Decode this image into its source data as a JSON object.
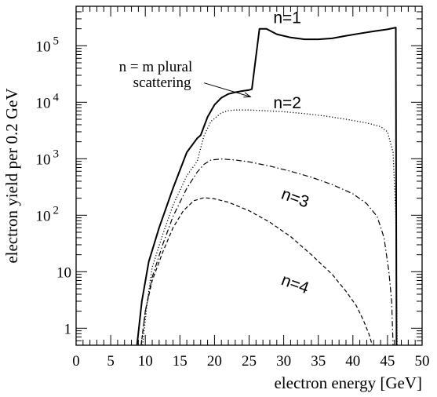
{
  "chart_data": {
    "type": "line",
    "title": "",
    "xlabel": "electron energy [GeV]",
    "ylabel": "electron yield per 0.2 GeV",
    "xlim": [
      0,
      50
    ],
    "ylim": [
      0.5,
      500000
    ],
    "yscale": "log",
    "grid": false,
    "x_ticks": [
      "0",
      "5",
      "10",
      "15",
      "20",
      "25",
      "30",
      "35",
      "40",
      "45",
      "50"
    ],
    "y_ticks": [
      {
        "value": 1,
        "label": "1"
      },
      {
        "value": 10,
        "label": "10"
      },
      {
        "value": 100,
        "label": "10",
        "sup": "2"
      },
      {
        "value": 1000,
        "label": "10",
        "sup": "3"
      },
      {
        "value": 10000,
        "label": "10",
        "sup": "4"
      },
      {
        "value": 100000,
        "label": "10",
        "sup": "5"
      }
    ],
    "series": [
      {
        "name": "n=1",
        "style": "solid",
        "label_x": 28.5,
        "label_y": 250000,
        "rotate": 0,
        "points": [
          [
            8.8,
            0.5
          ],
          [
            9.5,
            3
          ],
          [
            10.5,
            15
          ],
          [
            12,
            60
          ],
          [
            14,
            300
          ],
          [
            16,
            1300
          ],
          [
            17.5,
            2300
          ],
          [
            18,
            2600
          ],
          [
            19,
            5500
          ],
          [
            20,
            9000
          ],
          [
            21,
            12000
          ],
          [
            22,
            14000
          ],
          [
            23,
            15000
          ],
          [
            24,
            15800
          ],
          [
            25,
            16500
          ],
          [
            25.4,
            17000
          ],
          [
            26.5,
            200000
          ],
          [
            27.5,
            200000
          ],
          [
            29,
            160000
          ],
          [
            31,
            140000
          ],
          [
            33,
            130000
          ],
          [
            35,
            130000
          ],
          [
            37,
            135000
          ],
          [
            39,
            150000
          ],
          [
            41,
            165000
          ],
          [
            43,
            180000
          ],
          [
            45,
            195000
          ],
          [
            46.2,
            210000
          ],
          [
            46.3,
            0.5
          ]
        ]
      },
      {
        "name": "n=2",
        "style": "dotted",
        "label_x": 28.5,
        "label_y": 7800,
        "rotate": 0,
        "points": [
          [
            9.6,
            0.5
          ],
          [
            10.3,
            3
          ],
          [
            11,
            12
          ],
          [
            12.5,
            45
          ],
          [
            14,
            150
          ],
          [
            16,
            500
          ],
          [
            17.5,
            900
          ],
          [
            18.5,
            2600
          ],
          [
            19.5,
            4600
          ],
          [
            21,
            6500
          ],
          [
            22,
            7100
          ],
          [
            23,
            7300
          ],
          [
            25,
            7300
          ],
          [
            27,
            7100
          ],
          [
            30,
            6800
          ],
          [
            33,
            6300
          ],
          [
            36,
            5700
          ],
          [
            39,
            5000
          ],
          [
            42,
            4300
          ],
          [
            44,
            3700
          ],
          [
            45,
            3000
          ],
          [
            45.8,
            1300
          ],
          [
            46.2,
            100
          ],
          [
            46.4,
            0.5
          ]
        ]
      },
      {
        "name": "n=3",
        "style": "dashdot",
        "label_x": 29.5,
        "label_y": 200,
        "rotate": 20,
        "points": [
          [
            9.4,
            0.5
          ],
          [
            10,
            2
          ],
          [
            11,
            8
          ],
          [
            12.5,
            30
          ],
          [
            14,
            95
          ],
          [
            16,
            300
          ],
          [
            17.5,
            580
          ],
          [
            18.5,
            800
          ],
          [
            19.5,
            950
          ],
          [
            21,
            990
          ],
          [
            23,
            950
          ],
          [
            25,
            880
          ],
          [
            28,
            740
          ],
          [
            31,
            600
          ],
          [
            34,
            470
          ],
          [
            37,
            350
          ],
          [
            40,
            240
          ],
          [
            42,
            160
          ],
          [
            43.5,
            95
          ],
          [
            44.5,
            40
          ],
          [
            45.2,
            10
          ],
          [
            45.6,
            3
          ],
          [
            45.8,
            0.5
          ]
        ]
      },
      {
        "name": "n=4",
        "style": "dashed",
        "label_x": 29.5,
        "label_y": 6,
        "rotate": 20,
        "points": [
          [
            9.4,
            0.5
          ],
          [
            10,
            2
          ],
          [
            11,
            7
          ],
          [
            12.5,
            22
          ],
          [
            14,
            60
          ],
          [
            15.5,
            120
          ],
          [
            17,
            180
          ],
          [
            18.5,
            205
          ],
          [
            20,
            195
          ],
          [
            22,
            170
          ],
          [
            25,
            120
          ],
          [
            28,
            75
          ],
          [
            31,
            42
          ],
          [
            34,
            20
          ],
          [
            37,
            9
          ],
          [
            39,
            4.5
          ],
          [
            40.5,
            2.5
          ],
          [
            41.5,
            1.4
          ],
          [
            42.3,
            0.8
          ],
          [
            42.8,
            0.5
          ]
        ]
      }
    ],
    "annotation": {
      "lines": [
        "n = m plural",
        "scattering"
      ],
      "text_x": 6.2,
      "text_y": 35000,
      "arrow_from": [
        18.5,
        22000
      ],
      "arrow_to": [
        25.2,
        12500
      ]
    }
  }
}
